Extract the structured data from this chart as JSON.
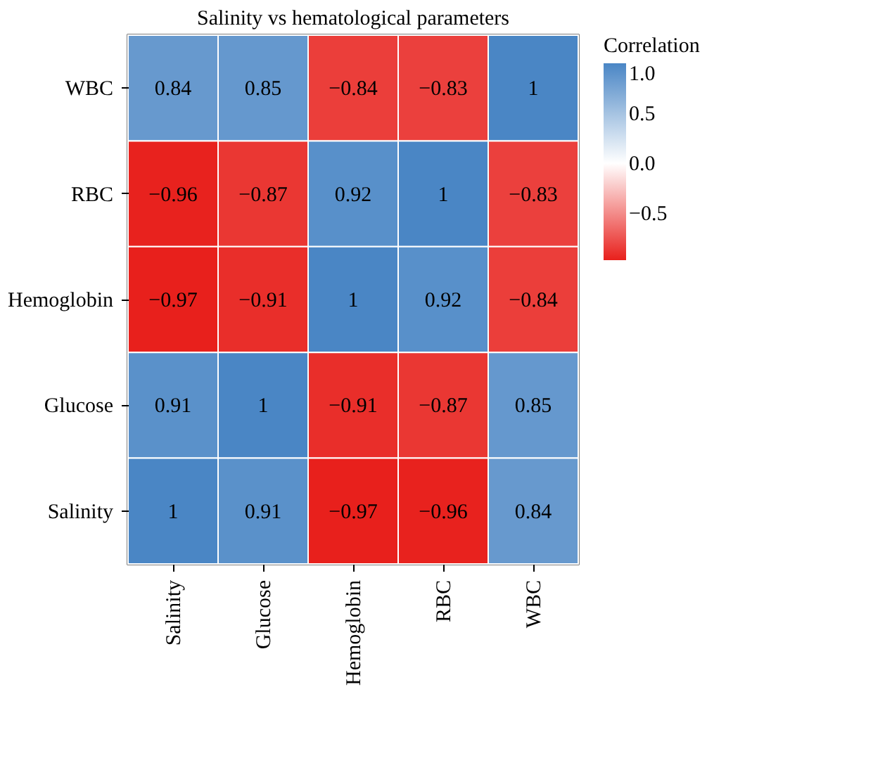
{
  "chart_data": {
    "type": "heatmap",
    "title": "Salinity vs hematological parameters",
    "legend_title": "Correlation",
    "categories": [
      "Salinity",
      "Glucose",
      "Hemoglobin",
      "RBC",
      "WBC"
    ],
    "y_categories": [
      "WBC",
      "RBC",
      "Hemoglobin",
      "Glucose",
      "Salinity"
    ],
    "cells": [
      [
        0.84,
        0.85,
        -0.84,
        -0.83,
        1
      ],
      [
        -0.96,
        -0.87,
        0.92,
        1,
        -0.83
      ],
      [
        -0.97,
        -0.91,
        1,
        0.92,
        -0.84
      ],
      [
        0.91,
        1,
        -0.91,
        -0.87,
        0.85
      ],
      [
        1,
        0.91,
        -0.97,
        -0.96,
        0.84
      ]
    ],
    "cell_labels": [
      [
        "0.84",
        "0.85",
        "−0.84",
        "−0.83",
        "1"
      ],
      [
        "−0.96",
        "−0.87",
        "0.92",
        "1",
        "−0.83"
      ],
      [
        "−0.97",
        "−0.91",
        "1",
        "0.92",
        "−0.84"
      ],
      [
        "0.91",
        "1",
        "−0.91",
        "−0.87",
        "0.85"
      ],
      [
        "1",
        "0.91",
        "−0.97",
        "−0.96",
        "0.84"
      ]
    ],
    "clim": [
      -0.97,
      1.0
    ],
    "cticks": [
      {
        "value": 1.0,
        "label": "1.0"
      },
      {
        "value": 0.5,
        "label": "0.5"
      },
      {
        "value": 0.0,
        "label": "0.0"
      },
      {
        "value": -0.5,
        "label": "−0.5"
      }
    ]
  }
}
